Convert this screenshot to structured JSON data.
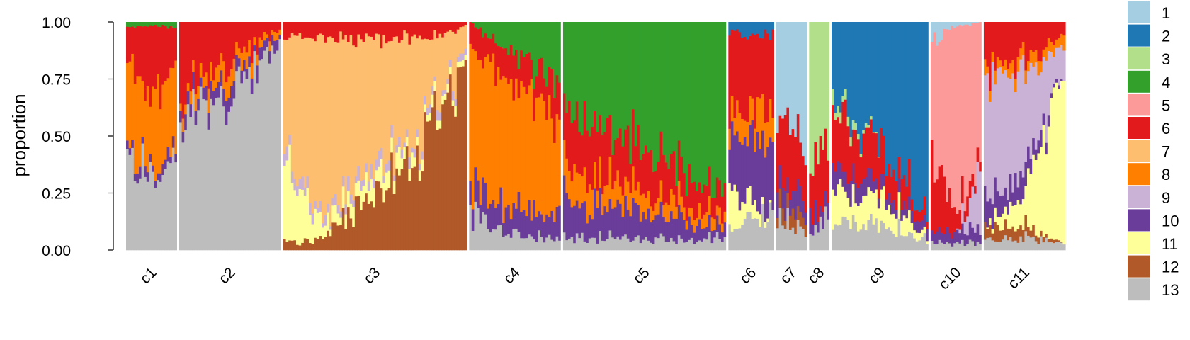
{
  "chart_data": {
    "type": "bar",
    "stacked": true,
    "ylabel": "proportion",
    "ylim": [
      0,
      1
    ],
    "yticks": [
      "0.00",
      "0.25",
      "0.50",
      "0.75",
      "1.00"
    ],
    "legend_placement": "right",
    "legend": [
      {
        "name": "1",
        "color": "#a6cee3"
      },
      {
        "name": "2",
        "color": "#1f78b4"
      },
      {
        "name": "3",
        "color": "#b2df8a"
      },
      {
        "name": "4",
        "color": "#33a02c"
      },
      {
        "name": "5",
        "color": "#fb9a99"
      },
      {
        "name": "6",
        "color": "#e31a1c"
      },
      {
        "name": "7",
        "color": "#fdbf6f"
      },
      {
        "name": "8",
        "color": "#ff7f00"
      },
      {
        "name": "9",
        "color": "#cab2d6"
      },
      {
        "name": "10",
        "color": "#6a3d9a"
      },
      {
        "name": "11",
        "color": "#ffff99"
      },
      {
        "name": "12",
        "color": "#b15928"
      },
      {
        "name": "13",
        "color": "#bdbdbd"
      }
    ],
    "clusters": [
      {
        "label": "c1",
        "n": 20,
        "stops": [
          [
            0,
            {
              "13": 0.45,
              "10": 0.05,
              "8": 0.35,
              "6": 0.13,
              "4": 0.02
            }
          ],
          [
            0.5,
            {
              "13": 0.3,
              "10": 0.03,
              "8": 0.3,
              "6": 0.35,
              "4": 0.02
            }
          ],
          [
            1,
            {
              "13": 0.4,
              "10": 0.05,
              "8": 0.4,
              "6": 0.13,
              "4": 0.02
            }
          ]
        ]
      },
      {
        "label": "c2",
        "n": 40,
        "stops": [
          [
            0,
            {
              "13": 0.6,
              "10": 0.05,
              "8": 0.05,
              "6": 0.3
            }
          ],
          [
            0.5,
            {
              "13": 0.7,
              "10": 0.07,
              "8": 0.08,
              "6": 0.15
            }
          ],
          [
            1,
            {
              "13": 0.92,
              "10": 0.03,
              "8": 0.02,
              "6": 0.03
            }
          ]
        ]
      },
      {
        "label": "c3",
        "n": 72,
        "stops": [
          [
            0,
            {
              "12": 0.03,
              "11": 0.3,
              "9": 0.05,
              "7": 0.55,
              "6": 0.07
            }
          ],
          [
            0.25,
            {
              "12": 0.06,
              "11": 0.05,
              "9": 0.03,
              "7": 0.78,
              "6": 0.08
            }
          ],
          [
            0.5,
            {
              "12": 0.25,
              "11": 0.08,
              "9": 0.05,
              "7": 0.55,
              "6": 0.07
            }
          ],
          [
            0.75,
            {
              "12": 0.45,
              "11": 0.05,
              "9": 0.03,
              "7": 0.4,
              "6": 0.07
            }
          ],
          [
            1,
            {
              "12": 0.8,
              "11": 0.02,
              "9": 0.03,
              "7": 0.13,
              "6": 0.02
            }
          ]
        ]
      },
      {
        "label": "c4",
        "n": 36,
        "stops": [
          [
            0,
            {
              "13": 0.15,
              "10": 0.1,
              "8": 0.65,
              "6": 0.1
            }
          ],
          [
            0.5,
            {
              "13": 0.07,
              "10": 0.12,
              "8": 0.53,
              "6": 0.13,
              "4": 0.15
            }
          ],
          [
            1,
            {
              "13": 0.05,
              "10": 0.1,
              "8": 0.4,
              "6": 0.15,
              "4": 0.3
            }
          ]
        ]
      },
      {
        "label": "c5",
        "n": 64,
        "stops": [
          [
            0,
            {
              "13": 0.05,
              "10": 0.15,
              "8": 0.15,
              "6": 0.25,
              "4": 0.4
            }
          ],
          [
            0.5,
            {
              "13": 0.05,
              "10": 0.12,
              "8": 0.08,
              "6": 0.2,
              "4": 0.55
            }
          ],
          [
            1,
            {
              "13": 0.05,
              "10": 0.05,
              "8": 0.05,
              "6": 0.1,
              "4": 0.75
            }
          ]
        ]
      },
      {
        "label": "c6",
        "n": 18,
        "stops": [
          [
            0,
            {
              "13": 0.1,
              "11": 0.15,
              "10": 0.25,
              "8": 0.1,
              "6": 0.35,
              "2": 0.05
            }
          ],
          [
            1,
            {
              "13": 0.15,
              "10": 0.3,
              "8": 0.15,
              "6": 0.35,
              "2": 0.05
            }
          ]
        ]
      },
      {
        "label": "c7",
        "n": 12,
        "stops": [
          [
            0,
            {
              "13": 0.15,
              "12": 0.05,
              "10": 0.1,
              "6": 0.25,
              "1": 0.45
            }
          ],
          [
            1,
            {
              "13": 0.1,
              "12": 0.05,
              "10": 0.1,
              "6": 0.2,
              "1": 0.55
            }
          ]
        ]
      },
      {
        "label": "c8",
        "n": 8,
        "stops": [
          [
            0,
            {
              "13": 0.1,
              "10": 0.1,
              "6": 0.2,
              "3": 0.6
            }
          ],
          [
            1,
            {
              "13": 0.15,
              "10": 0.05,
              "6": 0.25,
              "3": 0.55
            }
          ]
        ]
      },
      {
        "label": "c9",
        "n": 38,
        "stops": [
          [
            0,
            {
              "13": 0.1,
              "11": 0.15,
              "10": 0.1,
              "6": 0.25,
              "3": 0.05,
              "2": 0.35
            }
          ],
          [
            0.5,
            {
              "13": 0.1,
              "11": 0.1,
              "10": 0.05,
              "6": 0.15,
              "2": 0.6
            }
          ],
          [
            1,
            {
              "13": 0.05,
              "11": 0.03,
              "10": 0.05,
              "6": 0.05,
              "2": 0.82
            }
          ]
        ]
      },
      {
        "label": "c10",
        "n": 20,
        "stops": [
          [
            0,
            {
              "13": 0.03,
              "10": 0.05,
              "6": 0.3,
              "5": 0.55,
              "1": 0.07
            }
          ],
          [
            0.5,
            {
              "13": 0.03,
              "10": 0.05,
              "6": 0.1,
              "5": 0.8,
              "1": 0.02
            }
          ],
          [
            1,
            {
              "13": 0.03,
              "10": 0.05,
              "9": 0.2,
              "6": 0.05,
              "5": 0.67
            }
          ]
        ]
      },
      {
        "label": "c11",
        "n": 32,
        "stops": [
          [
            0,
            {
              "13": 0.05,
              "12": 0.05,
              "10": 0.1,
              "9": 0.55,
              "6": 0.2,
              "8": 0.05
            }
          ],
          [
            0.5,
            {
              "13": 0.05,
              "12": 0.05,
              "11": 0.15,
              "10": 0.1,
              "9": 0.45,
              "6": 0.15,
              "8": 0.05
            }
          ],
          [
            1,
            {
              "13": 0.03,
              "11": 0.75,
              "9": 0.1,
              "6": 0.07,
              "8": 0.05
            }
          ]
        ]
      }
    ]
  }
}
